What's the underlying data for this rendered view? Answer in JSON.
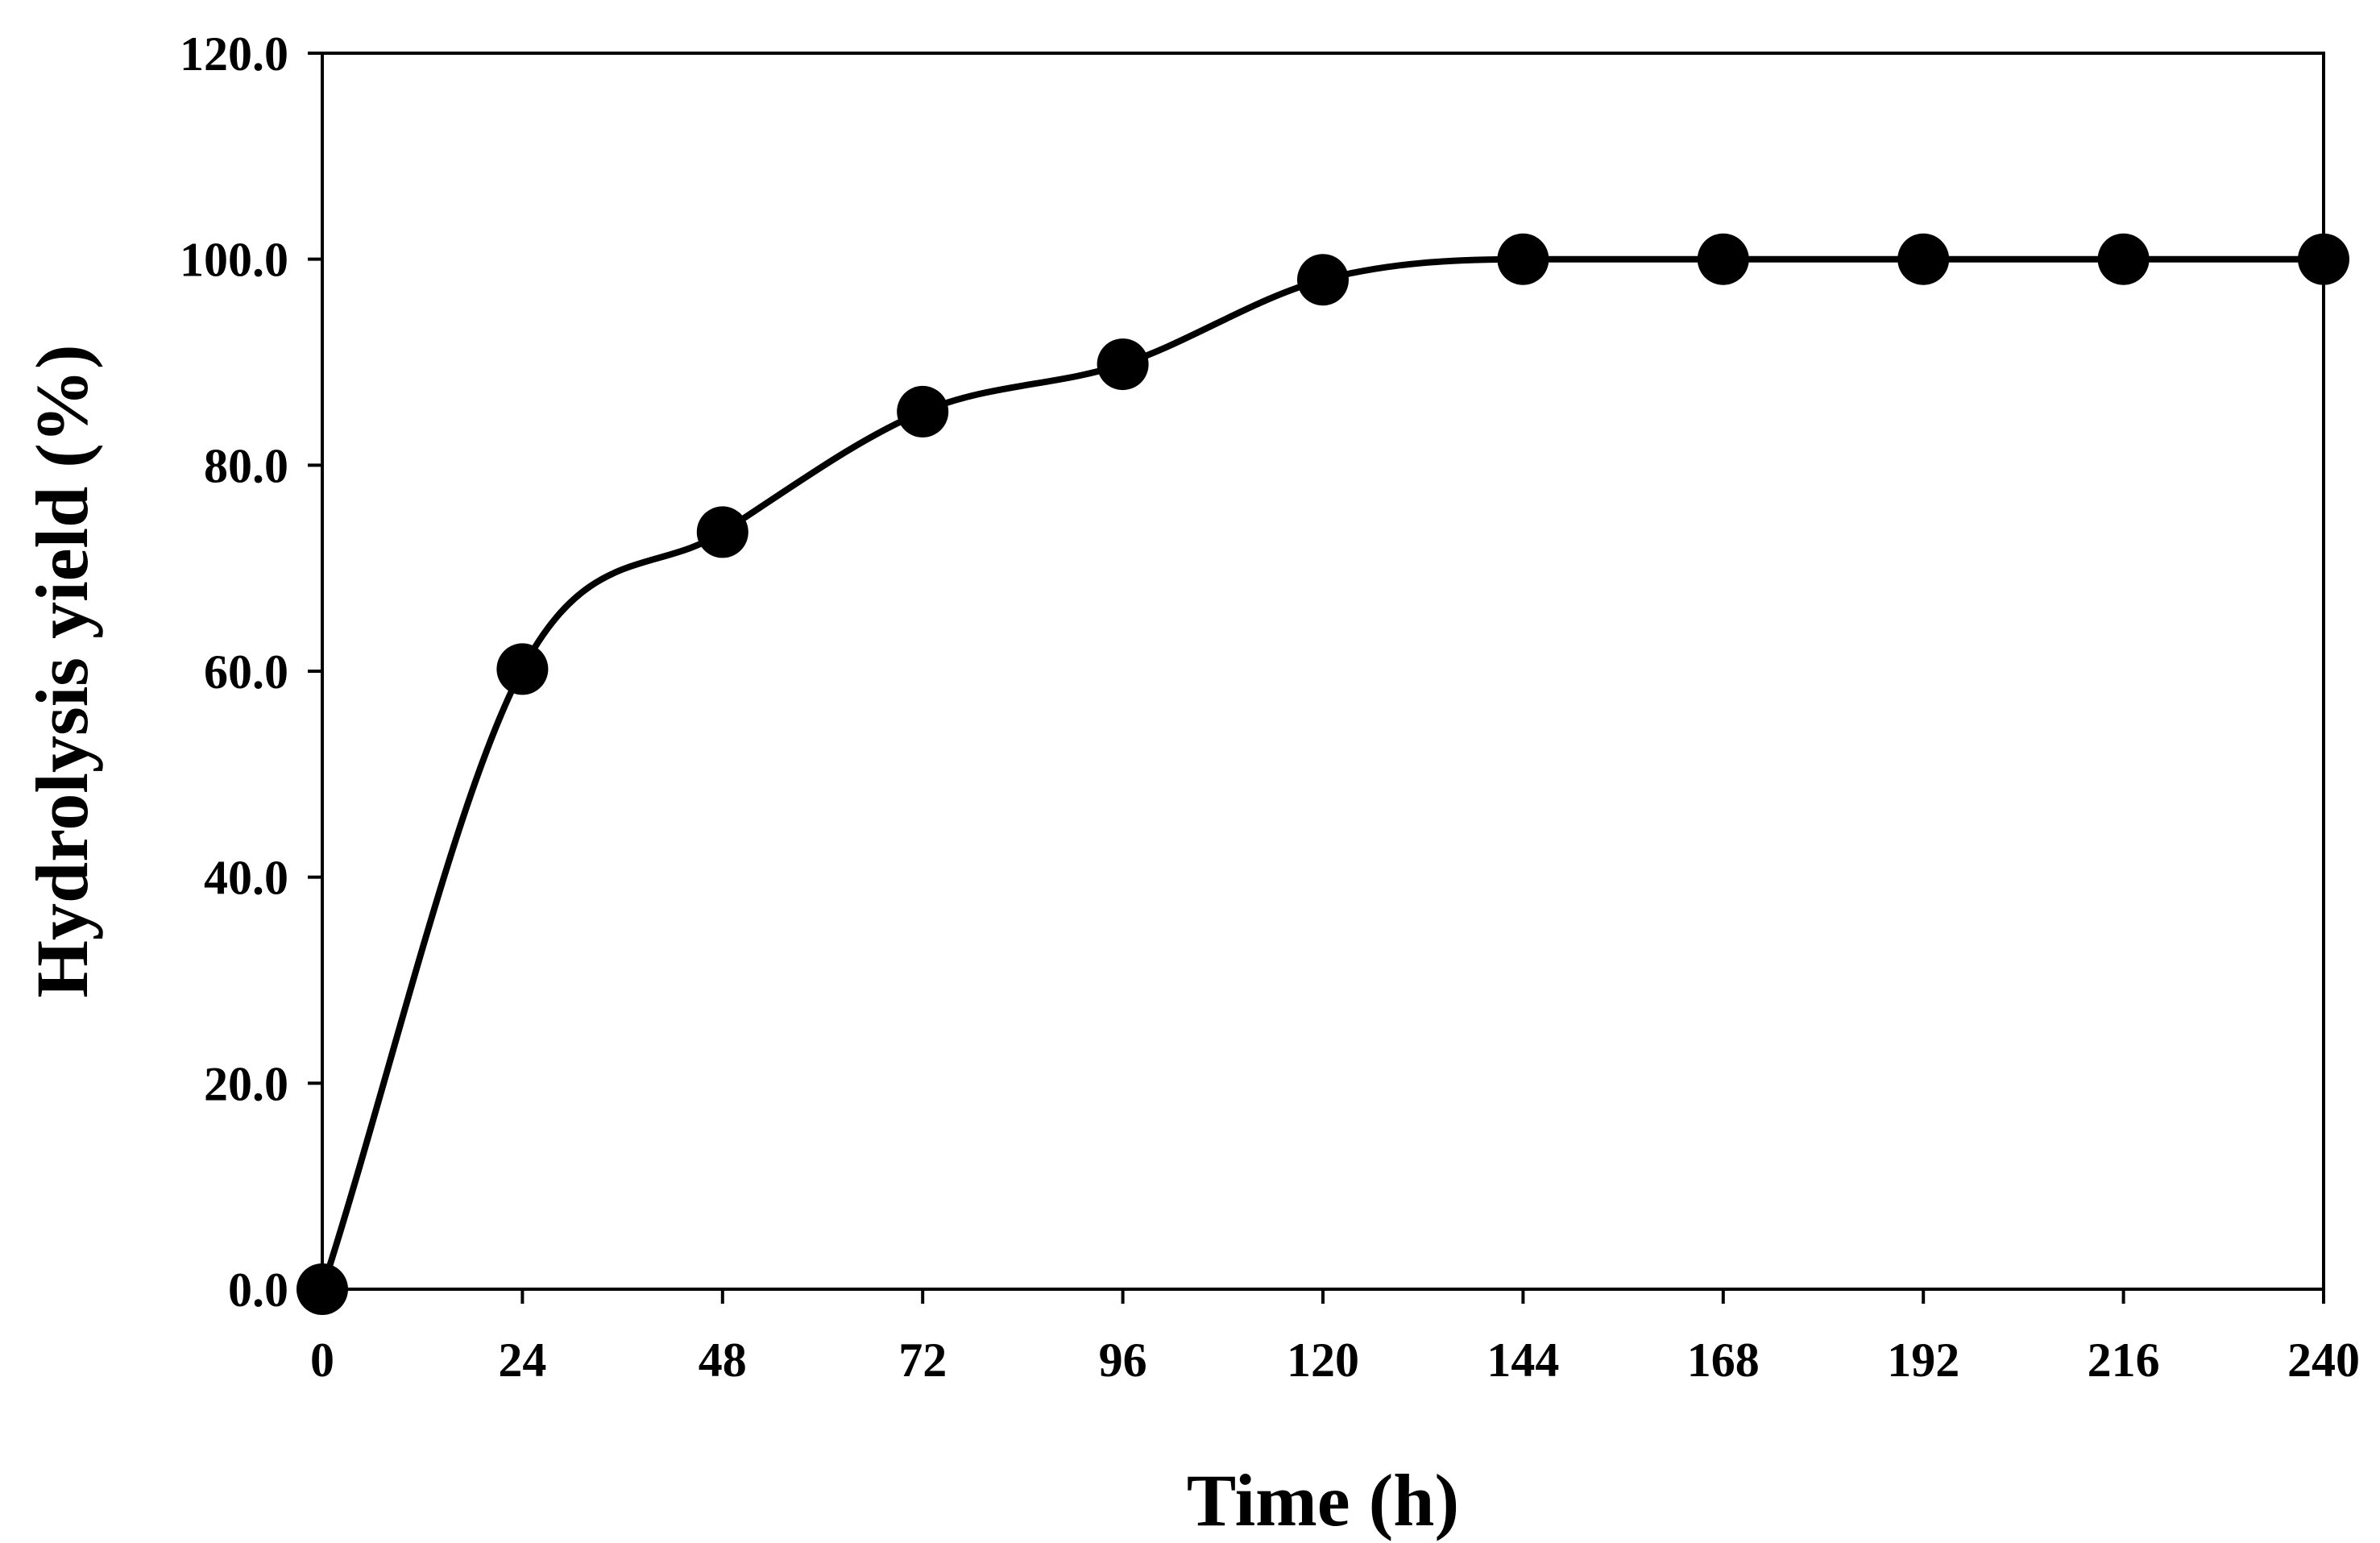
{
  "chart_data": {
    "type": "line",
    "title": "",
    "xlabel": "Time (h)",
    "ylabel": "Hydrolysis yield (%)",
    "xlim": [
      0,
      240
    ],
    "ylim": [
      0,
      120
    ],
    "xticks": [
      0,
      24,
      48,
      72,
      96,
      120,
      144,
      168,
      192,
      216,
      240
    ],
    "xtick_labels": [
      "0",
      "24",
      "48",
      "72",
      "96",
      "120",
      "144",
      "168",
      "192",
      "216",
      "240"
    ],
    "yticks": [
      0,
      20,
      40,
      60,
      80,
      100,
      120
    ],
    "ytick_labels": [
      "0.0",
      "20.0",
      "40.0",
      "60.0",
      "80.0",
      "100.0",
      "120.0"
    ],
    "grid": false,
    "legend": "none",
    "series": [
      {
        "name": "Hydrolysis yield",
        "color": "#000000",
        "marker": "filled-circle",
        "line": "smooth",
        "x": [
          0,
          24,
          48,
          72,
          96,
          120,
          144,
          168,
          192,
          216,
          240
        ],
        "values": [
          0,
          60.2,
          73.5,
          85.2,
          89.8,
          98.0,
          100.0,
          100.0,
          100.0,
          100.0,
          100.0
        ]
      }
    ]
  }
}
